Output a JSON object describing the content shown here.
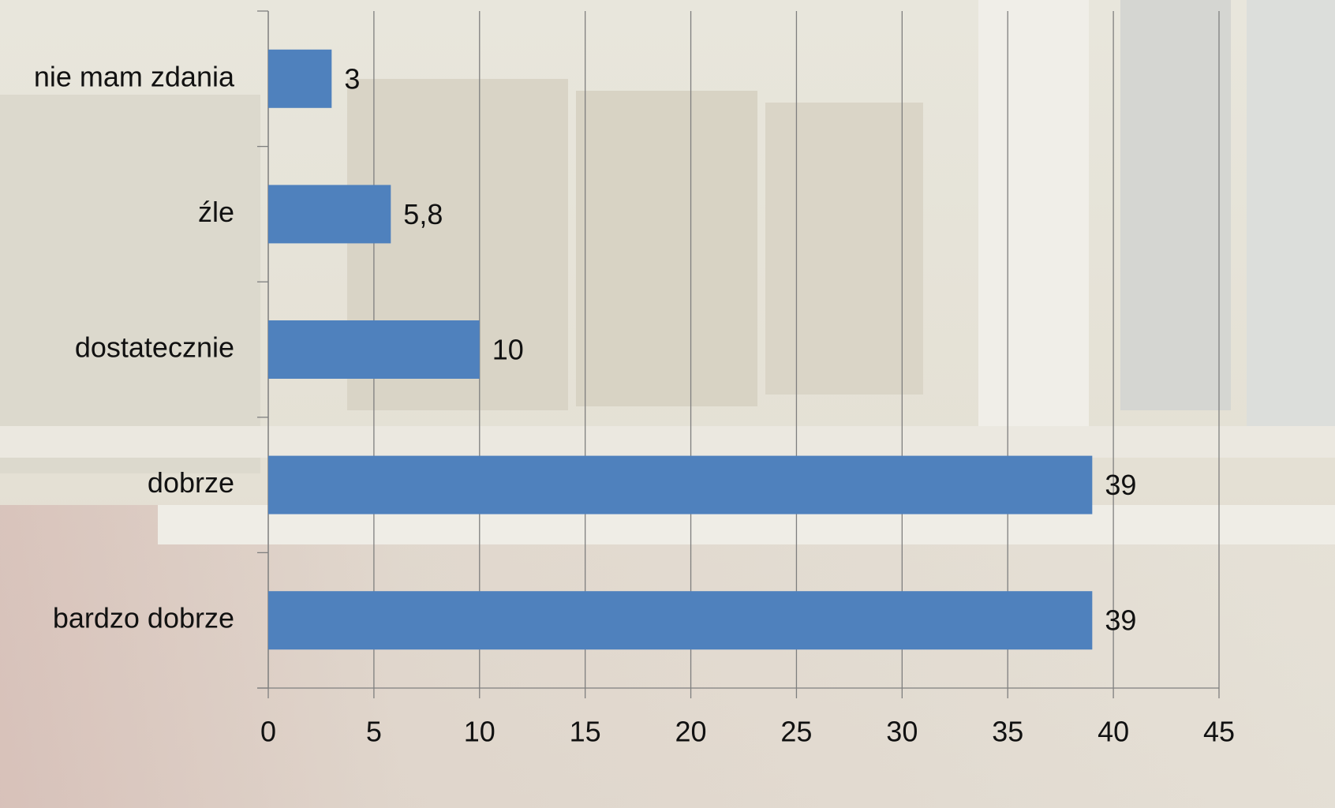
{
  "chart_data": {
    "type": "hbar",
    "categories": [
      "nie mam zdania",
      "źle",
      "dostatecznie",
      "dobrze",
      "bardzo dobrze"
    ],
    "values": [
      3,
      5.8,
      10,
      39,
      39
    ],
    "value_labels": [
      "3",
      "5,8",
      "10",
      "39",
      "39"
    ],
    "color": "#4f81bd",
    "xlim": [
      0,
      45
    ],
    "xticks": [
      0,
      5,
      10,
      15,
      20,
      25,
      30,
      35,
      40,
      45
    ],
    "grid": true
  }
}
